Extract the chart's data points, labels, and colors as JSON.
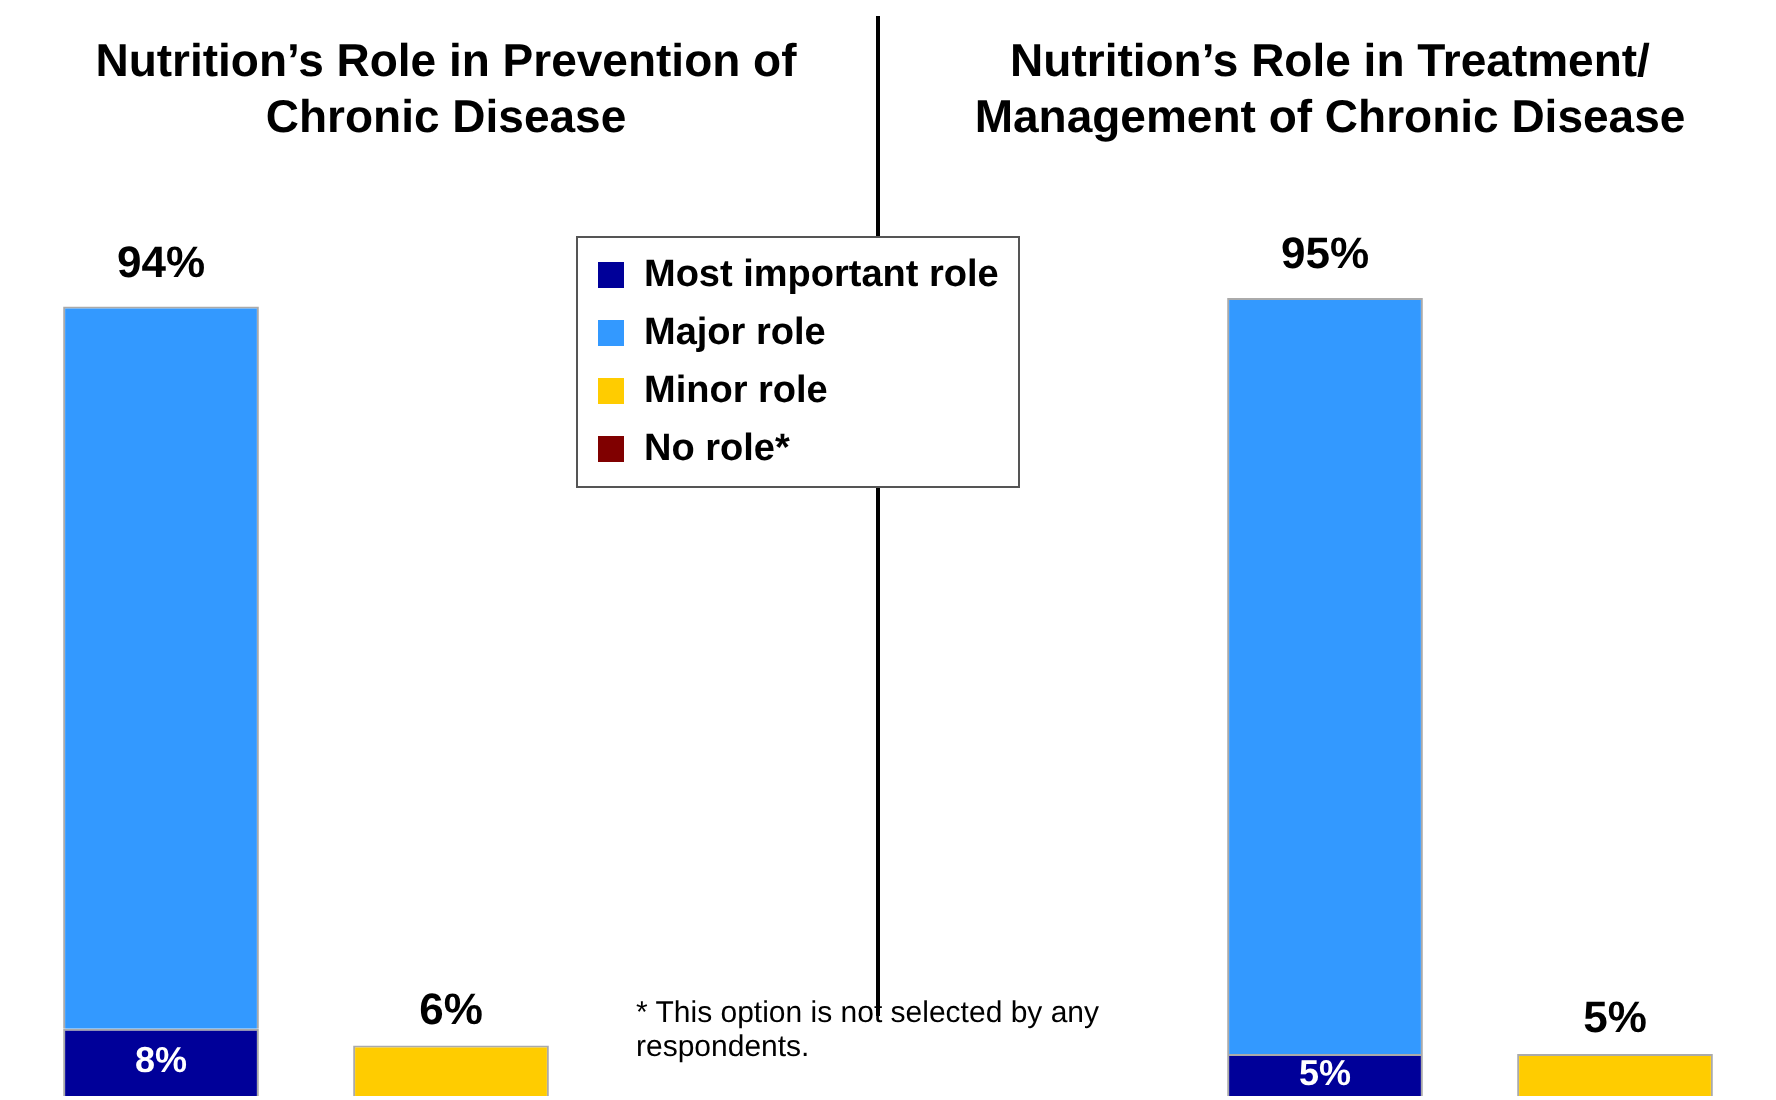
{
  "chart_data": [
    {
      "type": "bar",
      "title": "Nutrition’s Role in Prevention of Chronic Disease",
      "categories": [
        null,
        null
      ],
      "stacked": true,
      "tick_labels": false,
      "legend": "top right",
      "series": [
        {
          "name": "Most important role",
          "color": "#000099",
          "values": [
            8,
            null
          ],
          "value_labels": [
            "8%",
            null
          ]
        },
        {
          "name": "Major role",
          "color": "#3399ff",
          "values": [
            86,
            null
          ]
        },
        {
          "name": "Minor role",
          "color": "#ffcc00",
          "values": [
            null,
            6
          ],
          "value_labels": [
            null,
            "6%"
          ]
        },
        {
          "name": "No role*",
          "color": "#800000",
          "values": [
            null,
            null
          ]
        }
      ],
      "totals": [
        "94%",
        null
      ],
      "annotations": [
        "* This option is not selected by any respondents."
      ]
    },
    {
      "type": "bar",
      "title": "Nutrition’s Role in Treatment/ Management of Chronic Disease",
      "categories": [
        null,
        null
      ],
      "stacked": true,
      "tick_labels": false,
      "series": [
        {
          "color": "#000099",
          "values": [
            5,
            null
          ],
          "value_labels": [
            "5%",
            null
          ]
        },
        {
          "color": "#3399ff",
          "values": [
            90,
            null
          ]
        },
        {
          "color": "#ffcc00",
          "values": [
            null,
            5
          ],
          "value_labels": [
            null,
            "5%"
          ]
        },
        {
          "color": "#800000",
          "values": [
            null,
            null
          ]
        }
      ],
      "totals": [
        "95%",
        null
      ]
    }
  ]
}
